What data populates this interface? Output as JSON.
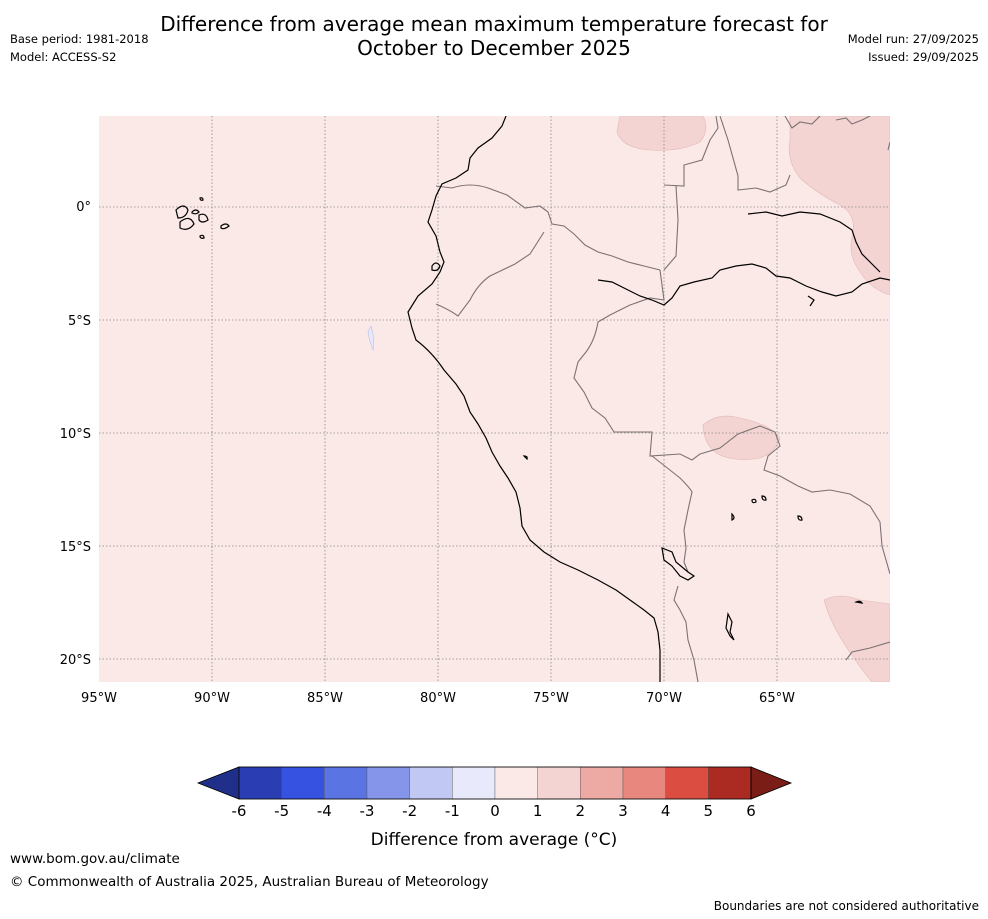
{
  "title": {
    "line1": "Difference from average mean maximum temperature forecast for",
    "line2": "October to December 2025"
  },
  "meta_left": {
    "base_period": "Base period: 1981-2018",
    "model": "Model: ACCESS-S2"
  },
  "meta_right": {
    "model_run": "Model run: 27/09/2025",
    "issued": "Issued: 29/09/2025"
  },
  "map": {
    "lat_labels": [
      "0°",
      "5°S",
      "10°S",
      "15°S",
      "20°S"
    ],
    "lon_labels": [
      "95°W",
      "90°W",
      "85°W",
      "80°W",
      "75°W",
      "70°W",
      "65°W"
    ],
    "base_color": "#fbe9e7",
    "warm_color": "#f3d4d2",
    "cool_color": "#e8e9f8"
  },
  "colorbar": {
    "ticks": [
      "-6",
      "-5",
      "-4",
      "-3",
      "-2",
      "-1",
      "0",
      "1",
      "2",
      "3",
      "4",
      "5",
      "6"
    ],
    "label": "Difference from average (°C)",
    "colors": [
      "#1f2f8a",
      "#2a3db3",
      "#3552e0",
      "#5a74e4",
      "#8596ea",
      "#c2c8f4",
      "#e8eafb",
      "#fbe9e7",
      "#f3d4d2",
      "#eda9a4",
      "#e7877e",
      "#db4d40",
      "#ab2a22",
      "#7a1d16"
    ]
  },
  "footer": {
    "url": "www.bom.gov.au/climate",
    "copyright": "© Commonwealth of Australia 2025, Australian Bureau of Meteorology",
    "disclaimer": "Boundaries are not considered authoritative"
  }
}
